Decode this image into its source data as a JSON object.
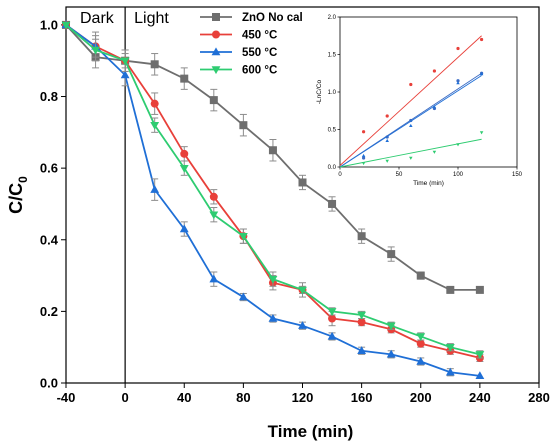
{
  "chart_data": [
    {
      "type": "line",
      "xlabel": "Time (min)",
      "ylabel": "C/C",
      "ylabel_subscript": "0",
      "xlim": [
        -40,
        280
      ],
      "ylim": [
        0,
        1.05
      ],
      "xticks": [
        -40,
        0,
        40,
        80,
        120,
        160,
        200,
        240,
        280
      ],
      "yticks": [
        0.0,
        0.2,
        0.4,
        0.6,
        0.8,
        1.0
      ],
      "xtick_labels": [
        "-40",
        "0",
        "40",
        "80",
        "120",
        "160",
        "200",
        "240",
        "280"
      ],
      "ytick_labels": [
        "0.0",
        "0.2",
        "0.4",
        "0.6",
        "0.8",
        "1.0"
      ],
      "regions": [
        {
          "label": "Dark",
          "x": -20
        },
        {
          "label": "Light",
          "x": 0
        }
      ],
      "legend_position": "top-center",
      "series": [
        {
          "name": "ZnO No cal",
          "color": "#6e6e6e",
          "marker": "square",
          "x": [
            -40,
            -20,
            0,
            20,
            40,
            60,
            80,
            100,
            120,
            140,
            160,
            180,
            200,
            220,
            240
          ],
          "y": [
            1.0,
            0.91,
            0.9,
            0.89,
            0.85,
            0.79,
            0.72,
            0.65,
            0.56,
            0.5,
            0.41,
            0.36,
            0.3,
            0.26,
            0.26
          ],
          "err": [
            0.0,
            0.03,
            0.03,
            0.03,
            0.03,
            0.03,
            0.03,
            0.03,
            0.02,
            0.02,
            0.02,
            0.02,
            0.01,
            0.0,
            0.0
          ]
        },
        {
          "name": "450 °C",
          "color": "#e8403a",
          "marker": "circle",
          "x": [
            -40,
            -20,
            0,
            20,
            40,
            60,
            80,
            100,
            120,
            140,
            160,
            180,
            200,
            220,
            240
          ],
          "y": [
            1.0,
            0.94,
            0.9,
            0.78,
            0.64,
            0.52,
            0.41,
            0.28,
            0.26,
            0.18,
            0.17,
            0.15,
            0.11,
            0.09,
            0.07
          ],
          "err": [
            0.0,
            0.03,
            0.02,
            0.03,
            0.02,
            0.02,
            0.02,
            0.02,
            0.02,
            0.02,
            0.01,
            0.01,
            0.01,
            0.01,
            0.01
          ]
        },
        {
          "name": "550 °C",
          "color": "#1f6fd6",
          "marker": "triangle-up",
          "x": [
            -40,
            -20,
            0,
            20,
            40,
            60,
            80,
            100,
            120,
            140,
            160,
            180,
            200,
            220,
            240
          ],
          "y": [
            1.0,
            0.94,
            0.86,
            0.54,
            0.43,
            0.29,
            0.24,
            0.18,
            0.16,
            0.13,
            0.09,
            0.08,
            0.06,
            0.03,
            0.02
          ],
          "err": [
            0.0,
            0.04,
            0.03,
            0.03,
            0.02,
            0.02,
            0.01,
            0.01,
            0.01,
            0.01,
            0.01,
            0.01,
            0.01,
            0.01,
            0.0
          ]
        },
        {
          "name": "600 °C",
          "color": "#2ecc71",
          "marker": "triangle-down",
          "x": [
            -40,
            -20,
            0,
            20,
            40,
            60,
            80,
            100,
            120,
            140,
            160,
            180,
            200,
            220,
            240
          ],
          "y": [
            1.0,
            0.93,
            0.9,
            0.72,
            0.6,
            0.47,
            0.41,
            0.29,
            0.26,
            0.2,
            0.19,
            0.16,
            0.13,
            0.1,
            0.08
          ],
          "err": [
            0.0,
            0.03,
            0.03,
            0.02,
            0.02,
            0.02,
            0.02,
            0.02,
            0.01,
            0.01,
            0.01,
            0.01,
            0.01,
            0.01,
            0.01
          ]
        }
      ]
    },
    {
      "type": "scatter",
      "xlabel": "Time (min)",
      "ylabel": "-LnC/Co",
      "xlim": [
        0,
        150
      ],
      "ylim": [
        0,
        2.0
      ],
      "xticks": [
        0,
        50,
        100,
        150
      ],
      "yticks": [
        0.0,
        0.5,
        1.0,
        1.5,
        2.0
      ],
      "xtick_labels": [
        "0",
        "50",
        "100",
        "150"
      ],
      "ytick_labels": [
        "0.0",
        "0.5",
        "1.0",
        "1.5",
        "2.0"
      ],
      "series": [
        {
          "color": "#e8403a",
          "marker": "circle",
          "x": [
            20,
            40,
            60,
            80,
            100,
            120
          ],
          "y": [
            0.47,
            0.68,
            1.1,
            1.28,
            1.58,
            1.7
          ],
          "fit": [
            0.02,
            1.75
          ]
        },
        {
          "color": "#3b6bc4",
          "marker": "circle",
          "x": [
            20,
            40,
            60,
            80,
            100,
            120
          ],
          "y": [
            0.12,
            0.4,
            0.62,
            0.78,
            1.15,
            1.25
          ],
          "fit": [
            0.0,
            1.25
          ]
        },
        {
          "color": "#1f6fd6",
          "marker": "triangle-up",
          "x": [
            20,
            40,
            60,
            80,
            100,
            120
          ],
          "y": [
            0.15,
            0.35,
            0.55,
            0.8,
            1.12,
            1.24
          ],
          "fit": [
            0.0,
            1.22
          ]
        },
        {
          "color": "#2ecc71",
          "marker": "triangle-down",
          "x": [
            20,
            40,
            60,
            80,
            100,
            120
          ],
          "y": [
            0.05,
            0.08,
            0.12,
            0.2,
            0.3,
            0.46
          ],
          "fit": [
            0.0,
            0.37
          ]
        }
      ]
    }
  ]
}
